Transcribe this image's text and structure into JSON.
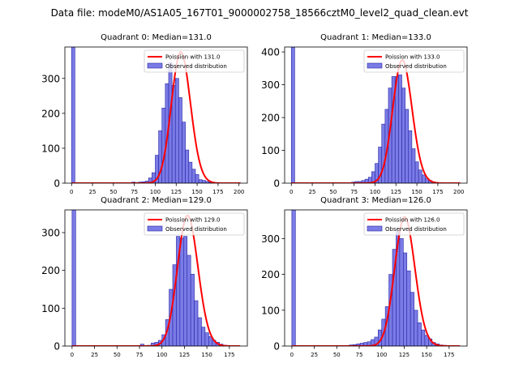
{
  "figure_title": "Data file: modeM0/AS1A05_167T01_9000002758_18566cztM0_level2_quad_clean.evt",
  "colors": {
    "observed": "#7b7be6",
    "observed_edge": "#2626a6",
    "poisson": "#ff0000"
  },
  "chart_data": [
    {
      "type": "bar",
      "title": "Quadrant 0: Median=131.0",
      "legend": [
        "Poission with 131.0",
        "Observed distribution"
      ],
      "legend_position": "upper-right",
      "xlim": [
        -8,
        210
      ],
      "ylim": [
        0,
        390
      ],
      "xticks": [
        0,
        25,
        50,
        75,
        100,
        125,
        150,
        175,
        200
      ],
      "yticks": [
        0,
        100,
        200,
        300
      ],
      "median": 131.0,
      "poisson_peak": 375,
      "bin_start": 0,
      "bin_width": 4,
      "counts": [
        395,
        0,
        0,
        0,
        0,
        0,
        0,
        0,
        0,
        0,
        0,
        0,
        0,
        0,
        0,
        0,
        0,
        0,
        3,
        2,
        3,
        4,
        6,
        15,
        30,
        80,
        150,
        215,
        285,
        345,
        280,
        300,
        245,
        175,
        95,
        60,
        40,
        25,
        10,
        8,
        5,
        2,
        1,
        0,
        0,
        0,
        0,
        0,
        0,
        0
      ]
    },
    {
      "type": "bar",
      "title": "Quadrant 1: Median=133.0",
      "legend": [
        "Poission with 133.0",
        "Observed distribution"
      ],
      "legend_position": "upper-right",
      "xlim": [
        -8,
        210
      ],
      "ylim": [
        0,
        415
      ],
      "xticks": [
        0,
        25,
        50,
        75,
        100,
        125,
        150,
        175,
        200
      ],
      "yticks": [
        0,
        100,
        200,
        300,
        400
      ],
      "median": 133.0,
      "poisson_peak": 375,
      "bin_start": 0,
      "bin_width": 4,
      "counts": [
        415,
        0,
        0,
        0,
        0,
        0,
        0,
        0,
        0,
        0,
        0,
        0,
        0,
        0,
        0,
        0,
        0,
        1,
        3,
        5,
        5,
        8,
        12,
        18,
        35,
        60,
        110,
        180,
        225,
        290,
        325,
        325,
        330,
        290,
        225,
        160,
        105,
        65,
        40,
        25,
        15,
        8,
        4,
        2,
        1,
        0,
        0,
        0,
        0,
        0
      ]
    },
    {
      "type": "bar",
      "title": "Quadrant 2: Median=129.0",
      "legend": [
        "Poission with 129.0",
        "Observed distribution"
      ],
      "legend_position": "upper-right",
      "xlim": [
        -8,
        195
      ],
      "ylim": [
        0,
        360
      ],
      "xticks": [
        0,
        25,
        50,
        75,
        100,
        125,
        150,
        175
      ],
      "yticks": [
        0,
        100,
        200,
        300
      ],
      "median": 129.0,
      "poisson_peak": 345,
      "bin_start": 0,
      "bin_width": 4,
      "counts": [
        360,
        0,
        0,
        0,
        0,
        0,
        0,
        0,
        0,
        0,
        0,
        0,
        0,
        0,
        0,
        0,
        0,
        0,
        0,
        5,
        0,
        2,
        8,
        10,
        15,
        30,
        70,
        150,
        215,
        290,
        285,
        290,
        240,
        190,
        120,
        75,
        50,
        35,
        25,
        15,
        10,
        5,
        2,
        0,
        0,
        0,
        0,
        0,
        0,
        0
      ]
    },
    {
      "type": "bar",
      "title": "Quadrant 3: Median=126.0",
      "legend": [
        "Poission with 126.0",
        "Observed distribution"
      ],
      "legend_position": "upper-right",
      "xlim": [
        -8,
        195
      ],
      "ylim": [
        0,
        380
      ],
      "xticks": [
        0,
        25,
        50,
        75,
        100,
        125,
        150,
        175
      ],
      "yticks": [
        0,
        100,
        200,
        300
      ],
      "median": 126.0,
      "poisson_peak": 360,
      "bin_start": 0,
      "bin_width": 4,
      "counts": [
        380,
        0,
        0,
        0,
        0,
        0,
        0,
        0,
        0,
        0,
        0,
        0,
        0,
        0,
        0,
        1,
        3,
        4,
        6,
        8,
        10,
        12,
        18,
        25,
        45,
        75,
        110,
        200,
        270,
        320,
        300,
        260,
        210,
        150,
        100,
        65,
        45,
        30,
        20,
        10,
        6,
        3,
        2,
        1,
        0,
        0,
        0,
        0,
        0,
        0
      ]
    }
  ]
}
